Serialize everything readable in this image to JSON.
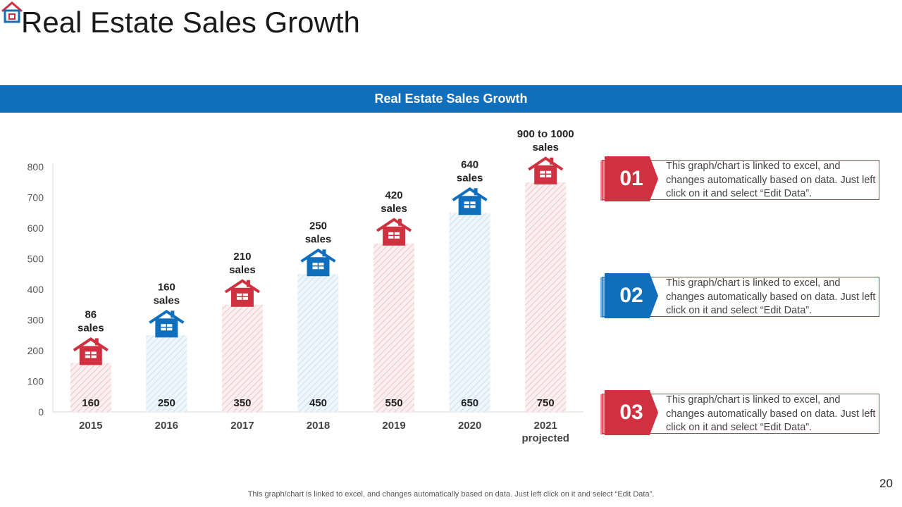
{
  "page": {
    "title": "Real Estate Sales Growth",
    "banner": "Real Estate Sales Growth",
    "footer": "This graph/chart is linked to excel, and changes automatically based on data. Just left click on it and select “Edit Data”.",
    "page_number": "20"
  },
  "colors": {
    "red": "#cf3140",
    "blue": "#0f6fbd"
  },
  "chart_data": {
    "type": "bar",
    "categories": [
      "2015",
      "2016",
      "2017",
      "2018",
      "2019",
      "2020",
      "2021 projected"
    ],
    "category_lines": [
      [
        "2015"
      ],
      [
        "2016"
      ],
      [
        "2017"
      ],
      [
        "2018"
      ],
      [
        "2019"
      ],
      [
        "2020"
      ],
      [
        "2021",
        "projected"
      ]
    ],
    "values": [
      160,
      250,
      350,
      450,
      550,
      650,
      750
    ],
    "bar_labels": [
      "160",
      "250",
      "350",
      "450",
      "550",
      "650",
      "750"
    ],
    "annotations": [
      [
        "86",
        "sales"
      ],
      [
        "160",
        "sales"
      ],
      [
        "210",
        "sales"
      ],
      [
        "250",
        "sales"
      ],
      [
        "420",
        "sales"
      ],
      [
        "640",
        "sales"
      ],
      [
        "900 to 1000",
        "sales"
      ]
    ],
    "bar_colors": [
      "red",
      "blue",
      "red",
      "blue",
      "red",
      "blue",
      "red"
    ],
    "ylim": [
      0,
      800
    ],
    "yticks": [
      0,
      100,
      200,
      300,
      400,
      500,
      600,
      700,
      800
    ],
    "xlabel": "",
    "ylabel": "",
    "grid": false
  },
  "callouts": [
    {
      "number": "01",
      "color": "red",
      "text": "This graph/chart is linked to excel, and changes automatically based on data. Just left click on it and select “Edit Data”."
    },
    {
      "number": "02",
      "color": "blue",
      "text": "This graph/chart is linked to excel, and changes automatically based on data. Just left click on it and select “Edit Data”."
    },
    {
      "number": "03",
      "color": "red",
      "text": "This graph/chart is linked to excel, and changes automatically based on data. Just left click on it and select “Edit Data”."
    }
  ]
}
